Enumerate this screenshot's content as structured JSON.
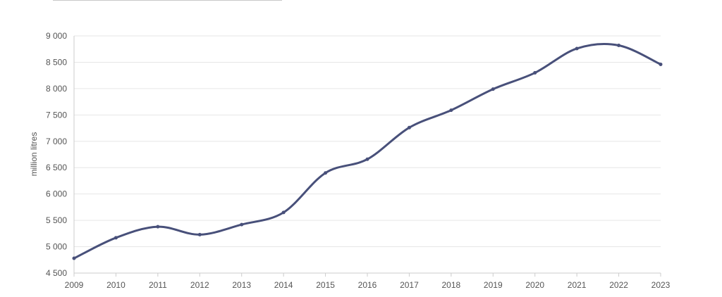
{
  "chart_data": {
    "type": "line",
    "title": "",
    "xlabel": "",
    "ylabel": "million litres",
    "x": [
      "2009",
      "2010",
      "2011",
      "2012",
      "2013",
      "2014",
      "2015",
      "2016",
      "2017",
      "2018",
      "2019",
      "2020",
      "2021",
      "2022",
      "2023"
    ],
    "series": [
      {
        "name": "",
        "values": [
          4780,
          5170,
          5380,
          5230,
          5420,
          5650,
          6400,
          6660,
          7260,
          7590,
          7990,
          8300,
          8760,
          8820,
          8460
        ]
      }
    ],
    "ylim": [
      4500,
      9000
    ],
    "yticks": [
      4500,
      5000,
      5500,
      6000,
      6500,
      7000,
      7500,
      8000,
      8500,
      9000
    ],
    "ytick_labels": [
      "4 500",
      "5 000",
      "5 500",
      "6 000",
      "6 500",
      "7 000",
      "7 500",
      "8 000",
      "8 500",
      "9 000"
    ],
    "grid": true,
    "legend": "none",
    "colors": {
      "line": "#48507a",
      "grid": "#e6e6e6",
      "axis": "#cccccc",
      "text": "#555555"
    }
  }
}
